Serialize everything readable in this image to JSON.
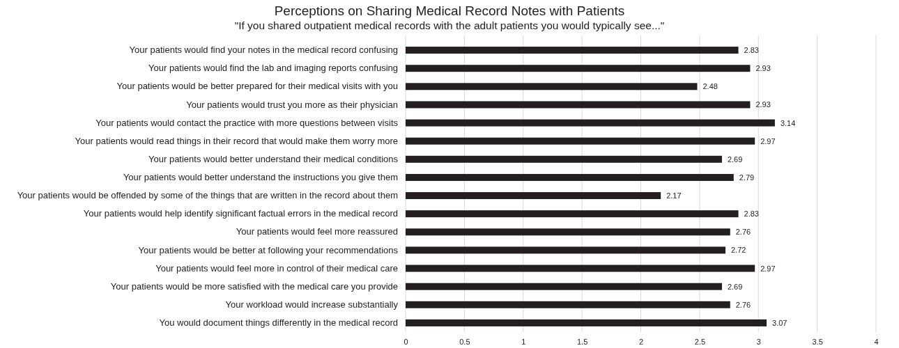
{
  "chart_data": {
    "type": "bar",
    "orientation": "horizontal",
    "title": "Perceptions on Sharing Medical Record Notes with Patients",
    "subtitle": "\"If you shared outpatient medical records with the adult patients you would typically see...\"",
    "categories": [
      "Your patients would find your notes in the medical record confusing",
      "Your patients would find the lab and imaging reports confusing",
      "Your patients would be better prepared for their medical visits with you",
      "Your patients would trust you more as their physician",
      "Your patients would contact the practice with more questions between visits",
      "Your patients would read things in their record that would make them worry more",
      "Your patients would better understand their medical conditions",
      "Your patients would better understand the instructions you give them",
      "Your patients would be offended by some of the things that are written in the record about them",
      "Your patients would help identify significant factual errors in the medical record",
      "Your patients would feel more reassured",
      "Your patients would be better at following your recommendations",
      "Your patients would feel more in control of their medical care",
      "Your patients would be more satisfied with the medical care you provide",
      "Your workload would increase substantially",
      "You would document things differently in the medical record"
    ],
    "values": [
      2.83,
      2.93,
      2.48,
      2.93,
      3.14,
      2.97,
      2.69,
      2.79,
      2.17,
      2.83,
      2.76,
      2.72,
      2.97,
      2.69,
      2.76,
      3.07
    ],
    "color": "#231f20",
    "xlim": [
      0,
      4
    ],
    "xticks": [
      0,
      0.5,
      1,
      1.5,
      2,
      2.5,
      3,
      3.5,
      4
    ],
    "grid": "x",
    "data_labels": true
  }
}
